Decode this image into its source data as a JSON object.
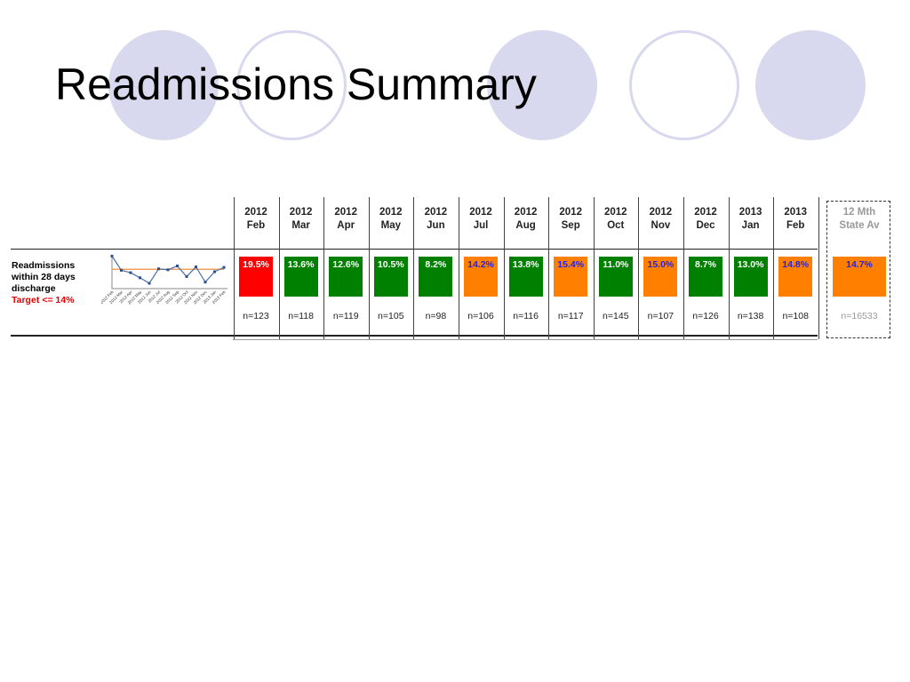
{
  "title": "Readmissions Summary",
  "row": {
    "label_line1": "Readmissions",
    "label_line2": "within 28 days",
    "label_line3": "discharge",
    "target": "Target <= 14%"
  },
  "colors": {
    "green": "#008000",
    "red": "#ff0000",
    "orange": "#ff8000",
    "target_line": "#f0a060",
    "series_line": "#4a6fa5"
  },
  "chart_data": {
    "type": "table",
    "columns": [
      {
        "year": "2012",
        "month": "Feb",
        "value": "19.5%",
        "n": "n=123",
        "status": "red"
      },
      {
        "year": "2012",
        "month": "Mar",
        "value": "13.6%",
        "n": "n=118",
        "status": "green"
      },
      {
        "year": "2012",
        "month": "Apr",
        "value": "12.6%",
        "n": "n=119",
        "status": "green"
      },
      {
        "year": "2012",
        "month": "May",
        "value": "10.5%",
        "n": "n=105",
        "status": "green"
      },
      {
        "year": "2012",
        "month": "Jun",
        "value": "8.2%",
        "n": "n=98",
        "status": "green"
      },
      {
        "year": "2012",
        "month": "Jul",
        "value": "14.2%",
        "n": "n=106",
        "status": "orange"
      },
      {
        "year": "2012",
        "month": "Aug",
        "value": "13.8%",
        "n": "n=116",
        "status": "green"
      },
      {
        "year": "2012",
        "month": "Sep",
        "value": "15.4%",
        "n": "n=117",
        "status": "orange"
      },
      {
        "year": "2012",
        "month": "Oct",
        "value": "11.0%",
        "n": "n=145",
        "status": "green"
      },
      {
        "year": "2012",
        "month": "Nov",
        "value": "15.0%",
        "n": "n=107",
        "status": "orange"
      },
      {
        "year": "2012",
        "month": "Dec",
        "value": "8.7%",
        "n": "n=126",
        "status": "green"
      },
      {
        "year": "2013",
        "month": "Jan",
        "value": "13.0%",
        "n": "n=138",
        "status": "green"
      },
      {
        "year": "2013",
        "month": "Feb",
        "value": "14.8%",
        "n": "n=108",
        "status": "orange"
      }
    ],
    "state_average": {
      "label_line1": "12 Mth",
      "label_line2": "State Av",
      "value": "14.7%",
      "n": "n=16533",
      "status": "orange"
    },
    "sparkline": {
      "type": "line",
      "x": [
        "2012 Feb",
        "2012 Mar",
        "2012 Apr",
        "2012 May",
        "2012 Jun",
        "2012 Jul",
        "2012 Aug",
        "2012 Sep",
        "2012 Oct",
        "2012 Nov",
        "2012 Dec",
        "2013 Jan",
        "2013 Feb"
      ],
      "values": [
        19.5,
        13.6,
        12.6,
        10.5,
        8.2,
        14.2,
        13.8,
        15.4,
        11.0,
        15.0,
        8.7,
        13.0,
        14.8
      ],
      "target": 14,
      "ylim": [
        6,
        20
      ]
    }
  }
}
